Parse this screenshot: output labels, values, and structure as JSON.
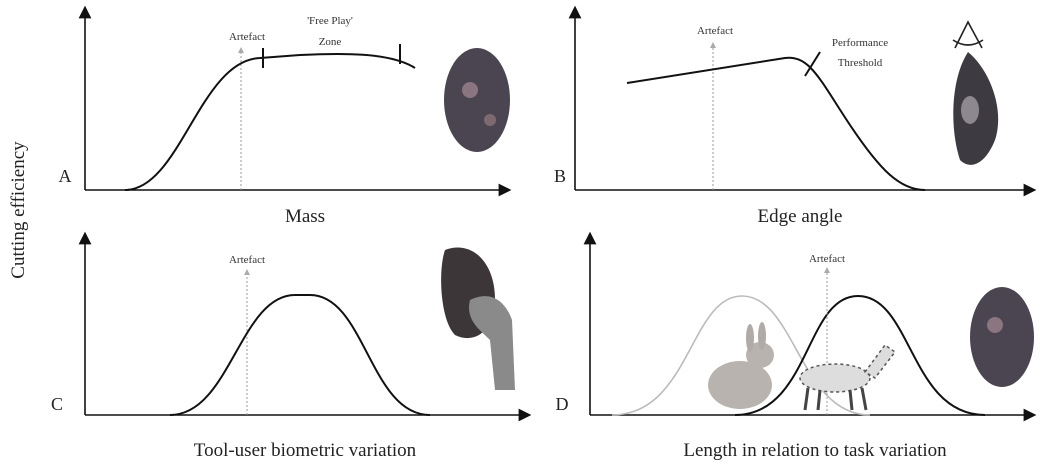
{
  "y_axis_label": "Cutting efficiency",
  "panels": [
    {
      "letter": "A",
      "x_axis_label": "Mass",
      "annotations": [
        "Artefact",
        "'Free Play'",
        "Zone"
      ]
    },
    {
      "letter": "B",
      "x_axis_label": "Edge angle",
      "annotations": [
        "Artefact",
        "Performance",
        "Threshold"
      ]
    },
    {
      "letter": "C",
      "x_axis_label": "Tool-user biometric variation",
      "annotations": [
        "Artefact"
      ]
    },
    {
      "letter": "D",
      "x_axis_label": "Length in relation to task variation",
      "annotations": [
        "Artefact"
      ]
    }
  ]
}
